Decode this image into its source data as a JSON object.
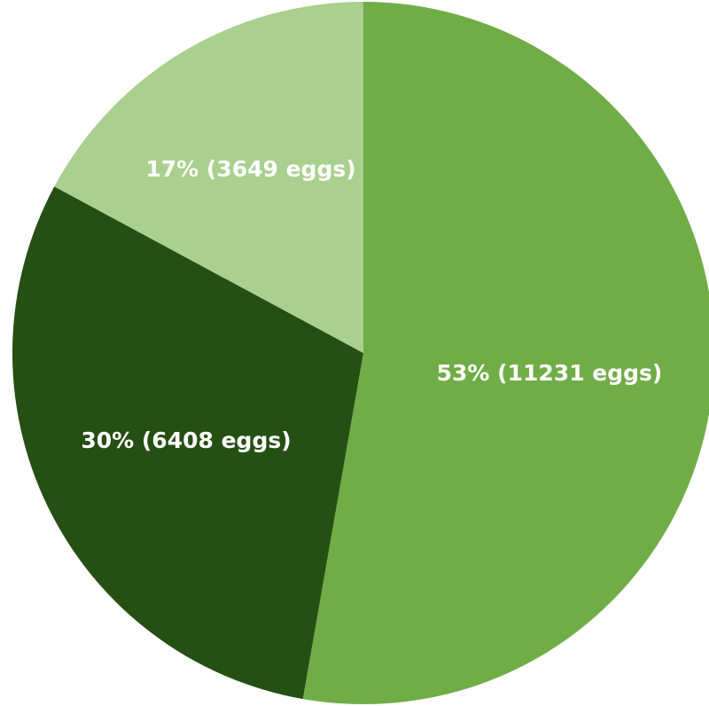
{
  "chart_data": {
    "type": "pie",
    "start_angle_deg": 0,
    "direction": "clockwise",
    "slices": [
      {
        "value": 11231,
        "percent": 53,
        "label": "53% (11231 eggs)",
        "color": "#70ad47"
      },
      {
        "value": 6408,
        "percent": 30,
        "label": "30% (6408 eggs)",
        "color": "#264f14"
      },
      {
        "value": 3649,
        "percent": 17,
        "label": "17% (3649 eggs)",
        "color": "#a9d08e"
      }
    ],
    "legend": "none"
  }
}
